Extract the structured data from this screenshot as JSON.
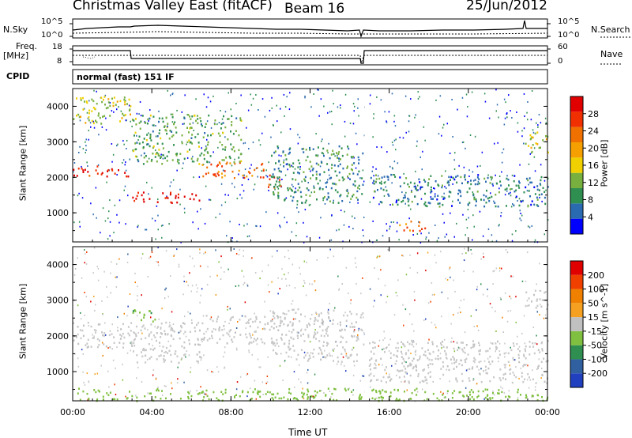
{
  "header": {
    "station": "Christmas Valley East (fitACF)",
    "beam": "Beam 16",
    "date": "25/Jun/2012"
  },
  "noise_panel": {
    "left_label": "N.Sky",
    "right_label": "N.Search",
    "left_ticks": [
      "10^5",
      "10^0"
    ],
    "right_ticks": [
      "10^5",
      "10^0"
    ]
  },
  "freq_panel": {
    "left_label_1": "Freq.",
    "left_label_2": "[MHz]",
    "right_label": "Nave",
    "left_ticks": [
      "18",
      "8"
    ],
    "right_ticks": [
      "60",
      "0"
    ]
  },
  "cpid": {
    "label": "CPID",
    "mode": "normal (fast) 151 IF"
  },
  "time_axis": {
    "label": "Time UT",
    "ticks": [
      "00:00",
      "04:00",
      "08:00",
      "12:00",
      "16:00",
      "20:00",
      "00:00"
    ]
  },
  "colors": {
    "power_scale": [
      "#0000ff",
      "#2a6ab0",
      "#2f8f50",
      "#78b040",
      "#f0d000",
      "#f5a000",
      "#f07000",
      "#f03000",
      "#e00000"
    ],
    "velocity_scale": [
      "#2040c0",
      "#3060a0",
      "#2f8f50",
      "#80c040",
      "#c0c0c0",
      "#f5a020",
      "#f08000",
      "#f04000",
      "#e00000"
    ],
    "gap": "#c8c8c8"
  },
  "chart_data": [
    {
      "type": "heatmap",
      "title": "",
      "xlabel": "Time UT",
      "ylabel": "Slant Range [km]",
      "xlim": [
        0,
        24
      ],
      "ylim": [
        180,
        4500
      ],
      "yticks": [
        "1000",
        "2000",
        "3000",
        "4000"
      ],
      "colorbar": {
        "label": "Power [dB]",
        "ticks": [
          "4",
          "8",
          "12",
          "16",
          "20",
          "24",
          "28"
        ],
        "range": [
          0,
          30
        ]
      },
      "features": [
        {
          "from": 0.0,
          "to": 2.9,
          "range": [
            2050,
            2350
          ],
          "power": 27
        },
        {
          "from": 2.9,
          "to": 6.4,
          "range": [
            1300,
            1600
          ],
          "power": 28
        },
        {
          "from": 6.4,
          "to": 9.8,
          "range": [
            2000,
            2450
          ],
          "power": 22
        },
        {
          "from": 9.8,
          "to": 10.5,
          "range": [
            1700,
            2100
          ],
          "power": 24
        },
        {
          "from": 0.0,
          "to": 3.0,
          "range": [
            3500,
            4300
          ],
          "power": 14
        },
        {
          "from": 3.0,
          "to": 8.5,
          "range": [
            2400,
            3800
          ],
          "power": 10
        },
        {
          "from": 10.0,
          "to": 14.7,
          "range": [
            1300,
            2900
          ],
          "power": 8
        },
        {
          "from": 14.8,
          "to": 24.0,
          "range": [
            1200,
            2100
          ],
          "power": 7
        },
        {
          "from": 16.5,
          "to": 17.8,
          "range": [
            480,
            800
          ],
          "power": 22
        },
        {
          "from": 22.8,
          "to": 24.0,
          "range": [
            2700,
            3300
          ],
          "power": 14
        }
      ],
      "data_gap": {
        "from": 14.75,
        "to": 14.95
      }
    },
    {
      "type": "heatmap",
      "title": "",
      "xlabel": "Time UT",
      "ylabel": "Slant Range [km]",
      "xlim": [
        0,
        24
      ],
      "ylim": [
        180,
        4500
      ],
      "yticks": [
        "1000",
        "2000",
        "3000",
        "4000"
      ],
      "colorbar": {
        "label": "Velocity [m s^-1]",
        "ticks": [
          "200",
          "100",
          "50",
          "15",
          "-15",
          "-50",
          "-100",
          "-200"
        ],
        "range": [
          -250,
          250
        ]
      },
      "features": [
        {
          "from": 0.0,
          "to": 3.0,
          "range": [
            1700,
            2400
          ],
          "velocity": 0
        },
        {
          "from": 3.0,
          "to": 6.5,
          "range": [
            1250,
            2400
          ],
          "velocity": 0
        },
        {
          "from": 3.0,
          "to": 4.2,
          "range": [
            2400,
            2800
          ],
          "velocity": -70
        },
        {
          "from": 6.5,
          "to": 10.5,
          "range": [
            1800,
            2600
          ],
          "velocity": 0
        },
        {
          "from": 10.0,
          "to": 14.7,
          "range": [
            1300,
            2800
          ],
          "velocity": 0
        },
        {
          "from": 14.8,
          "to": 24.0,
          "range": [
            700,
            1900
          ],
          "velocity": 0
        },
        {
          "from": 0.0,
          "to": 24.0,
          "range": [
            200,
            550
          ],
          "velocity": -60
        },
        {
          "from": 22.8,
          "to": 24.0,
          "range": [
            2800,
            3300
          ],
          "velocity": 0
        }
      ],
      "data_gap": {
        "from": 14.75,
        "to": 14.95
      }
    }
  ]
}
